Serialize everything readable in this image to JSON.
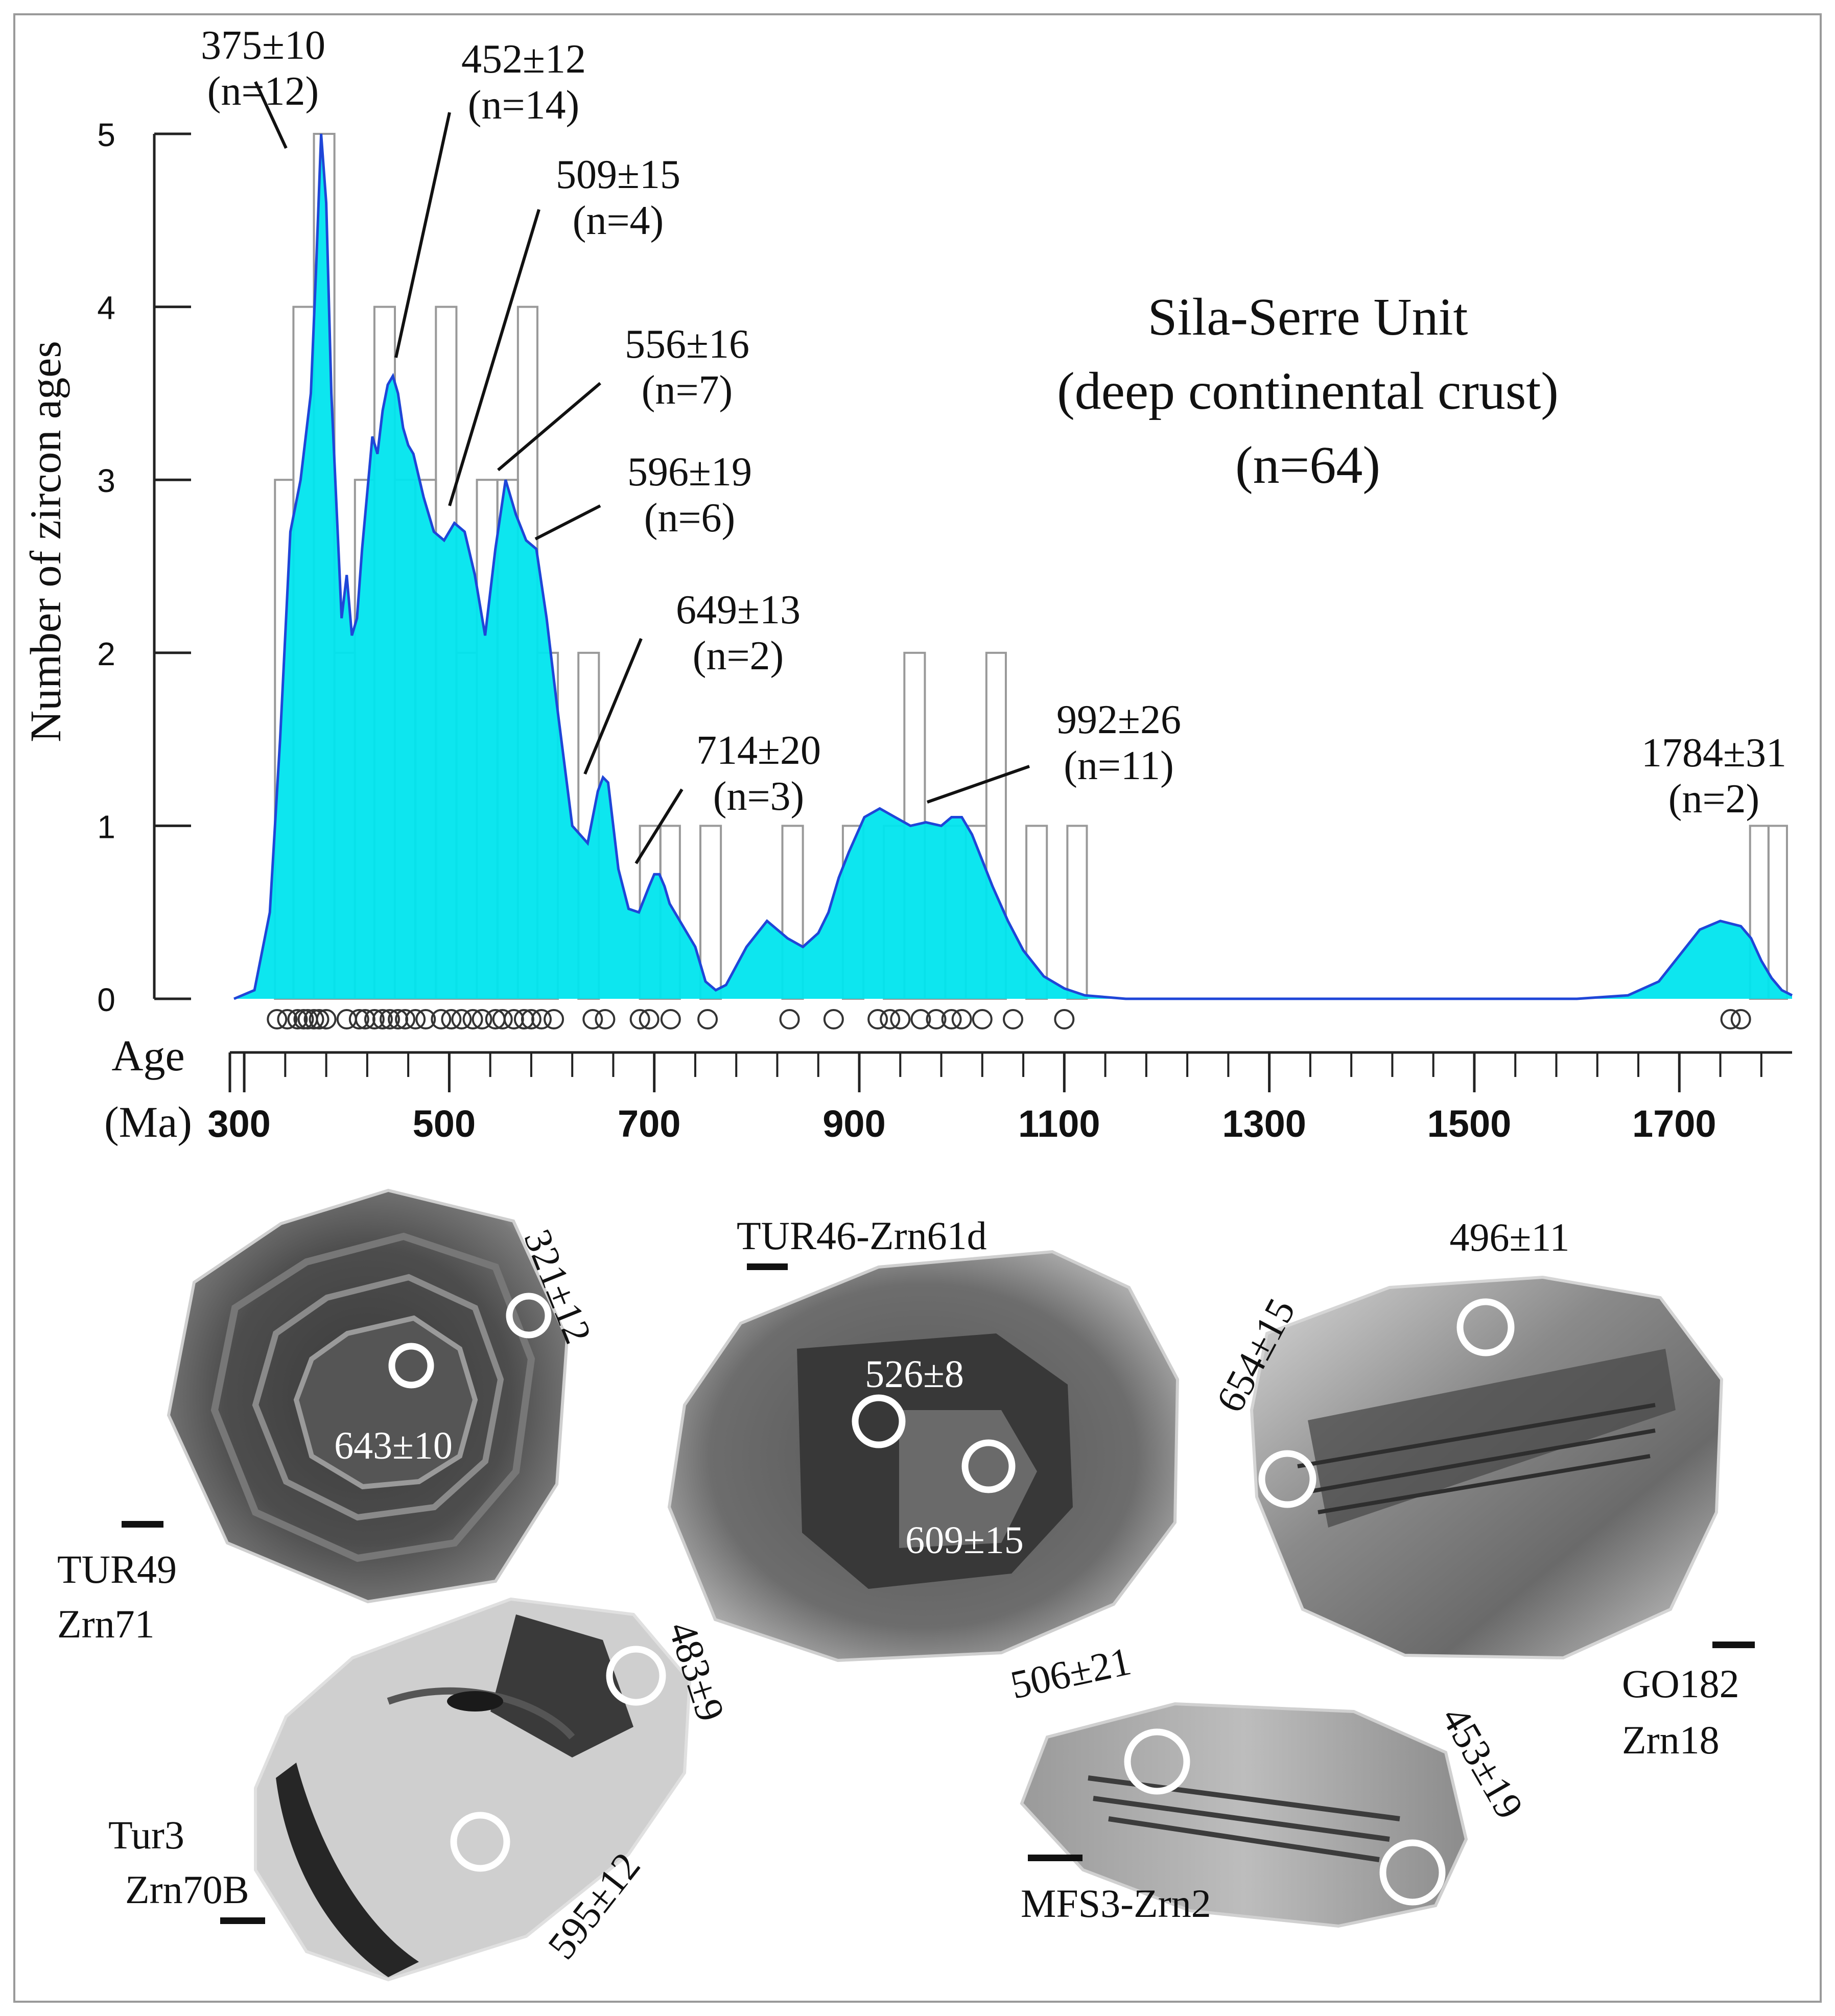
{
  "chart_data": {
    "type": "histogram+kde",
    "title": "Sila-Serre Unit",
    "subtitle": "(deep continental crust)",
    "n_label": "(n=64)",
    "ylabel": "Number of zircon ages",
    "xlabel_line1": "Age",
    "xlabel_line2": "(Ma)",
    "ylim": [
      0,
      5
    ],
    "xlim": [
      290,
      1810
    ],
    "yticks": [
      0,
      1,
      2,
      3,
      4,
      5
    ],
    "xticks": [
      300,
      500,
      700,
      900,
      1100,
      1300,
      1500,
      1700
    ],
    "minor_tick_step": 40,
    "colors": {
      "kde_fill": "#00e5ee",
      "kde_line": "#1f46d8",
      "bars": "#999999",
      "axis": "#222222"
    },
    "histogram_bins": [
      {
        "start": 330,
        "end": 348,
        "count": 3
      },
      {
        "start": 348,
        "end": 368,
        "count": 4
      },
      {
        "start": 368,
        "end": 388,
        "count": 5
      },
      {
        "start": 388,
        "end": 408,
        "count": 2
      },
      {
        "start": 408,
        "end": 427,
        "count": 3
      },
      {
        "start": 427,
        "end": 447,
        "count": 4
      },
      {
        "start": 447,
        "end": 467,
        "count": 3
      },
      {
        "start": 467,
        "end": 487,
        "count": 3
      },
      {
        "start": 487,
        "end": 507,
        "count": 4
      },
      {
        "start": 507,
        "end": 527,
        "count": 2
      },
      {
        "start": 527,
        "end": 547,
        "count": 3
      },
      {
        "start": 547,
        "end": 567,
        "count": 3
      },
      {
        "start": 567,
        "end": 586,
        "count": 4
      },
      {
        "start": 586,
        "end": 606,
        "count": 2
      },
      {
        "start": 626,
        "end": 646,
        "count": 2
      },
      {
        "start": 686,
        "end": 706,
        "count": 1
      },
      {
        "start": 706,
        "end": 725,
        "count": 1
      },
      {
        "start": 745,
        "end": 765,
        "count": 1
      },
      {
        "start": 825,
        "end": 845,
        "count": 1
      },
      {
        "start": 884,
        "end": 904,
        "count": 1
      },
      {
        "start": 924,
        "end": 944,
        "count": 1
      },
      {
        "start": 944,
        "end": 964,
        "count": 2
      },
      {
        "start": 964,
        "end": 984,
        "count": 1
      },
      {
        "start": 984,
        "end": 1004,
        "count": 1
      },
      {
        "start": 1004,
        "end": 1024,
        "count": 1
      },
      {
        "start": 1024,
        "end": 1043,
        "count": 2
      },
      {
        "start": 1063,
        "end": 1083,
        "count": 1
      },
      {
        "start": 1103,
        "end": 1122,
        "count": 1
      },
      {
        "start": 1769,
        "end": 1787,
        "count": 1
      },
      {
        "start": 1787,
        "end": 1805,
        "count": 1
      }
    ],
    "kde_curve": {
      "x": [
        290,
        310,
        325,
        335,
        345,
        355,
        365,
        370,
        375,
        380,
        385,
        395,
        400,
        405,
        410,
        415,
        425,
        430,
        435,
        440,
        445,
        450,
        455,
        460,
        465,
        475,
        485,
        495,
        505,
        515,
        525,
        535,
        545,
        555,
        565,
        575,
        585,
        595,
        605,
        620,
        635,
        645,
        650,
        655,
        665,
        675,
        685,
        695,
        700,
        705,
        710,
        715,
        725,
        740,
        750,
        760,
        770,
        790,
        810,
        830,
        845,
        860,
        870,
        880,
        890,
        905,
        920,
        935,
        950,
        965,
        980,
        990,
        1000,
        1010,
        1020,
        1030,
        1045,
        1060,
        1080,
        1100,
        1120,
        1140,
        1160,
        1180,
        1200,
        1230,
        1260,
        1300,
        1400,
        1500,
        1600,
        1650,
        1680,
        1700,
        1720,
        1740,
        1760,
        1770,
        1780,
        1790,
        1800,
        1810
      ],
      "y": [
        0.0,
        0.05,
        0.5,
        1.5,
        2.7,
        3.0,
        3.5,
        4.2,
        5.0,
        4.6,
        3.5,
        2.2,
        2.45,
        2.1,
        2.2,
        2.6,
        3.25,
        3.15,
        3.4,
        3.55,
        3.6,
        3.5,
        3.3,
        3.2,
        3.15,
        2.9,
        2.7,
        2.65,
        2.75,
        2.7,
        2.45,
        2.1,
        2.6,
        3.0,
        2.8,
        2.65,
        2.6,
        2.2,
        1.7,
        1.0,
        0.9,
        1.2,
        1.28,
        1.25,
        0.75,
        0.52,
        0.5,
        0.65,
        0.72,
        0.72,
        0.65,
        0.55,
        0.45,
        0.3,
        0.1,
        0.05,
        0.08,
        0.3,
        0.45,
        0.35,
        0.3,
        0.38,
        0.5,
        0.7,
        0.85,
        1.05,
        1.1,
        1.05,
        1.0,
        1.02,
        1.0,
        1.05,
        1.05,
        0.95,
        0.8,
        0.65,
        0.45,
        0.28,
        0.13,
        0.06,
        0.02,
        0.01,
        0.0,
        0.0,
        0.0,
        0.0,
        0.0,
        0.0,
        0.0,
        0.0,
        0.0,
        0.02,
        0.1,
        0.25,
        0.4,
        0.45,
        0.42,
        0.35,
        0.22,
        0.12,
        0.05,
        0.02
      ]
    },
    "analysis_markers_ma": [
      332,
      342,
      352,
      358,
      362,
      368,
      373,
      380,
      400,
      412,
      418,
      427,
      435,
      442,
      450,
      457,
      467,
      477,
      492,
      502,
      512,
      523,
      532,
      545,
      552,
      563,
      573,
      580,
      590,
      602,
      640,
      652,
      686,
      695,
      716,
      752,
      832,
      875,
      918,
      930,
      940,
      960,
      975,
      990,
      1000,
      1020,
      1050,
      1100,
      1750,
      1760
    ],
    "peak_labels": [
      {
        "age": "375±10",
        "n": "(n=12)",
        "peak_x": 375,
        "peak_y": 5.0
      },
      {
        "age": "452±12",
        "n": "(n=14)",
        "peak_x": 447,
        "peak_y": 3.6
      },
      {
        "age": "509±15",
        "n": "(n=4)",
        "peak_x": 500,
        "peak_y": 2.75
      },
      {
        "age": "556±16",
        "n": "(n=7)",
        "peak_x": 553,
        "peak_y": 3.0
      },
      {
        "age": "596±19",
        "n": "(n=6)",
        "peak_x": 590,
        "peak_y": 2.6
      },
      {
        "age": "649±13",
        "n": "(n=2)",
        "peak_x": 650,
        "peak_y": 1.28
      },
      {
        "age": "714±20",
        "n": "(n=3)",
        "peak_x": 705,
        "peak_y": 0.72
      },
      {
        "age": "992±26",
        "n": "(n=11)",
        "peak_x": 975,
        "peak_y": 1.0
      },
      {
        "age": "1784±31",
        "n": "(n=2)",
        "peak_x": 1770,
        "peak_y": 0.45
      }
    ]
  },
  "grains": [
    {
      "label_1": "TUR49",
      "label_2": "Zrn71",
      "spots": [
        "321±12",
        "643±10"
      ]
    },
    {
      "label_1": "TUR46-Zrn61d",
      "spots": [
        "526±8",
        "609±15"
      ]
    },
    {
      "label_1": "GO182",
      "label_2": "Zrn18",
      "spots": [
        "496±11",
        "654±15"
      ]
    },
    {
      "label_1": "Tur3",
      "label_2": "Zrn70B",
      "spots": [
        "483±9",
        "595±12"
      ]
    },
    {
      "label_1": "MFS3-Zrn2",
      "spots": [
        "506±21",
        "453±19"
      ]
    }
  ]
}
